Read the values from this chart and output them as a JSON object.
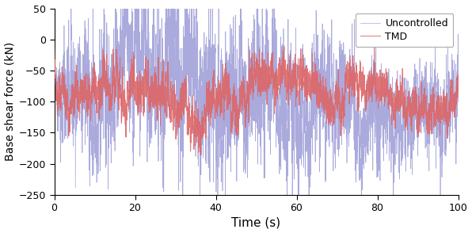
{
  "title": "",
  "xlabel": "Time (s)",
  "ylabel": "Base shear force (kN)",
  "xlim": [
    0,
    100
  ],
  "ylim": [
    -250,
    50
  ],
  "yticks": [
    -250,
    -200,
    -150,
    -100,
    -50,
    0,
    50
  ],
  "xticks": [
    0,
    20,
    40,
    60,
    80,
    100
  ],
  "uncontrolled_color": "#aaaadd",
  "tmd_color": "#dd6666",
  "legend_labels": [
    "Uncontrolled",
    "TMD"
  ],
  "figsize": [
    5.96,
    2.94
  ],
  "dpi": 100
}
